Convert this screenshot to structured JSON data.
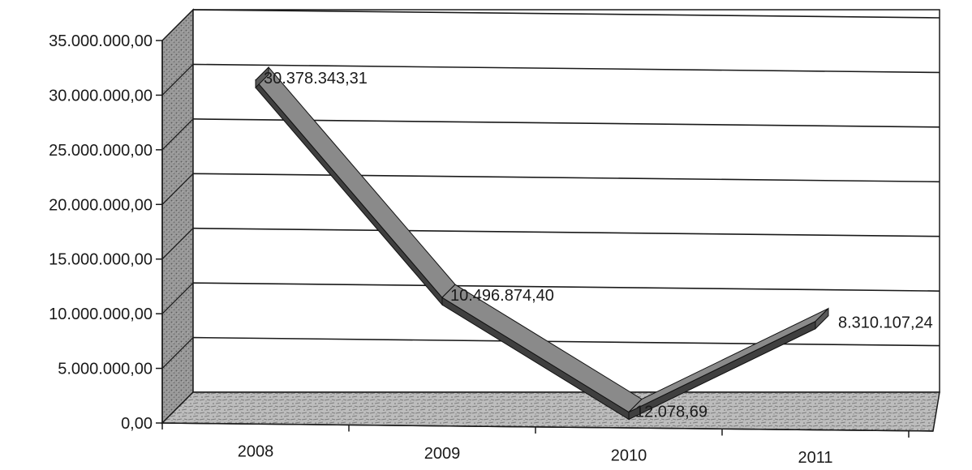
{
  "chart_data": {
    "type": "line",
    "categories": [
      "2008",
      "2009",
      "2010",
      "2011"
    ],
    "series": [
      {
        "values": [
          30378343.31,
          10496874.4,
          12078.69,
          8310107.24
        ],
        "labels": [
          "30.378.343,31",
          "10.496.874,40",
          "12.078,69",
          "8.310.107,24"
        ]
      }
    ],
    "y_ticks": [
      "0,00",
      "5.000.000,00",
      "10.000.000,00",
      "15.000.000,00",
      "20.000.000,00",
      "25.000.000,00",
      "30.000.000,00",
      "35.000.000,00"
    ],
    "ylim": [
      0,
      35000000
    ],
    "grid": true,
    "legend": "none",
    "three_d": true,
    "colors": {
      "line_top": "#8a8a8a",
      "line_side": "#3f3f3f",
      "wall": "#8f8f8f",
      "floor": "#b5b5b5",
      "gridline": "#1a1a1a"
    }
  }
}
